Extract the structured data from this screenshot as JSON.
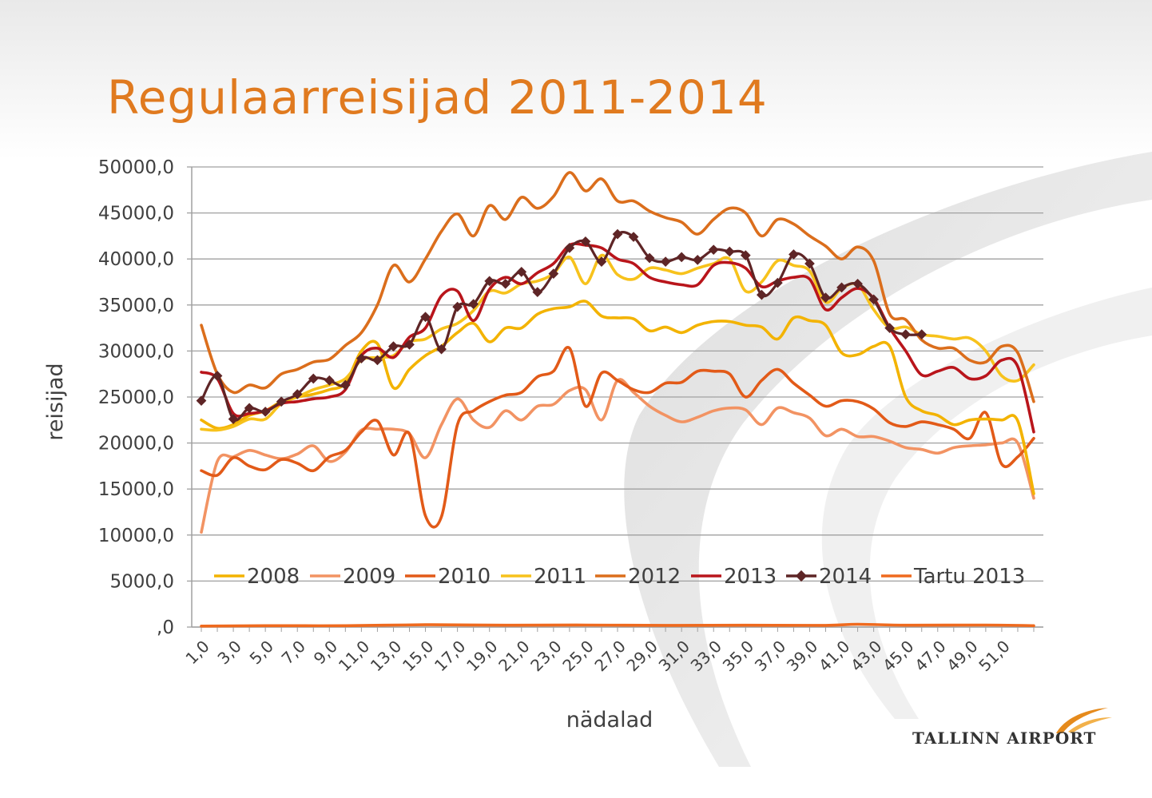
{
  "slide": {
    "title": "Regulaarreisijad 2011-2014",
    "logo_text": "TALLINN AIRPORT"
  },
  "colors": {
    "title": "#e07a1f",
    "grid": "#a0a0a0",
    "s2008": "#f3b300",
    "s2009": "#f29363",
    "s2010": "#e25a18",
    "s2011": "#f7c21c",
    "s2012": "#db6e1c",
    "s2013": "#b9151b",
    "s2014": "#5e2526",
    "sTartu": "#ef6a1e"
  },
  "chart_data": {
    "type": "line",
    "title": "Regulaarreisijad 2011-2014",
    "xlabel": "nädalad",
    "ylabel": "reisijad",
    "ylim": [
      0,
      50000
    ],
    "y_ticks": [
      "50000,0",
      "45000,0",
      "40000,0",
      "35000,0",
      "30000,0",
      "25000,0",
      "20000,0",
      "15000,0",
      "10000,0",
      "5000,0",
      ",0"
    ],
    "x_tick_labels": [
      "1,0",
      "3,0",
      "5,0",
      "7,0",
      "9,0",
      "11,0",
      "13,0",
      "15,0",
      "17,0",
      "19,0",
      "21,0",
      "23,0",
      "25,0",
      "27,0",
      "29,0",
      "31,0",
      "33,0",
      "35,0",
      "37,0",
      "39,0",
      "41,0",
      "43,0",
      "45,0",
      "47,0",
      "49,0",
      "51,0"
    ],
    "x_range": [
      1,
      53
    ],
    "grid": true,
    "legend_position": "bottom-inside",
    "series": [
      {
        "name": "2008",
        "color_key": "s2008",
        "x": [
          1,
          2,
          3,
          4,
          5,
          6,
          7,
          8,
          9,
          10,
          11,
          12,
          13,
          14,
          15,
          16,
          17,
          18,
          19,
          20,
          21,
          22,
          23,
          24,
          25,
          26,
          27,
          28,
          29,
          30,
          31,
          32,
          33,
          34,
          35,
          36,
          37,
          38,
          39,
          40,
          41,
          42,
          43,
          44,
          45,
          46,
          47,
          48,
          49,
          50,
          51,
          52,
          53
        ],
        "values": [
          22500,
          21600,
          22000,
          23000,
          23500,
          24500,
          25000,
          25300,
          25800,
          26500,
          30000,
          30800,
          26000,
          28000,
          29500,
          30500,
          32000,
          33000,
          31000,
          32500,
          32500,
          34000,
          34600,
          34800,
          35400,
          33800,
          33600,
          33500,
          32200,
          32600,
          32000,
          32800,
          33200,
          33200,
          32800,
          32600,
          31300,
          33600,
          33300,
          32800,
          29800,
          29600,
          30500,
          30500,
          25000,
          23500,
          23000,
          22000,
          22500,
          22600,
          22500,
          22400,
          14500
        ]
      },
      {
        "name": "2009",
        "color_key": "s2009",
        "x": [
          1,
          2,
          3,
          4,
          5,
          6,
          7,
          8,
          9,
          10,
          11,
          12,
          13,
          14,
          15,
          16,
          17,
          18,
          19,
          20,
          21,
          22,
          23,
          24,
          25,
          26,
          27,
          28,
          29,
          30,
          31,
          32,
          33,
          34,
          35,
          36,
          37,
          38,
          39,
          40,
          41,
          42,
          43,
          44,
          45,
          46,
          47,
          48,
          49,
          50,
          51,
          52,
          53
        ],
        "values": [
          10300,
          18000,
          18500,
          19200,
          18700,
          18300,
          18800,
          19700,
          18000,
          19000,
          21400,
          21500,
          21500,
          21000,
          18400,
          22000,
          24800,
          22500,
          21700,
          23500,
          22500,
          24000,
          24200,
          25700,
          25800,
          22500,
          26800,
          25500,
          24000,
          23000,
          22300,
          22800,
          23500,
          23800,
          23600,
          22000,
          23800,
          23300,
          22700,
          20800,
          21500,
          20700,
          20700,
          20200,
          19500,
          19300,
          18900,
          19500,
          19700,
          19800,
          20000,
          20000,
          14000
        ]
      },
      {
        "name": "2010",
        "color_key": "s2010",
        "x": [
          1,
          2,
          3,
          4,
          5,
          6,
          7,
          8,
          9,
          10,
          11,
          12,
          13,
          14,
          15,
          16,
          17,
          18,
          19,
          20,
          21,
          22,
          23,
          24,
          25,
          26,
          27,
          28,
          29,
          30,
          31,
          32,
          33,
          34,
          35,
          36,
          37,
          38,
          39,
          40,
          41,
          42,
          43,
          44,
          45,
          46,
          47,
          48,
          49,
          50,
          51,
          52,
          53
        ],
        "values": [
          17000,
          16500,
          18400,
          17500,
          17100,
          18200,
          17800,
          17000,
          18500,
          19200,
          21200,
          22400,
          18700,
          21000,
          12100,
          12000,
          22000,
          23500,
          24500,
          25200,
          25500,
          27200,
          27800,
          30300,
          24000,
          27600,
          26800,
          25800,
          25500,
          26500,
          26600,
          27800,
          27800,
          27500,
          25000,
          26800,
          28000,
          26500,
          25200,
          24000,
          24600,
          24500,
          23700,
          22200,
          21800,
          22300,
          22000,
          21500,
          20500,
          23300,
          17700,
          18500,
          20500
        ]
      },
      {
        "name": "2011",
        "color_key": "s2011",
        "x": [
          1,
          2,
          3,
          4,
          5,
          6,
          7,
          8,
          9,
          10,
          11,
          12,
          13,
          14,
          15,
          16,
          17,
          18,
          19,
          20,
          21,
          22,
          23,
          24,
          25,
          26,
          27,
          28,
          29,
          30,
          31,
          32,
          33,
          34,
          35,
          36,
          37,
          38,
          39,
          40,
          41,
          42,
          43,
          44,
          45,
          46,
          47,
          48,
          49,
          50,
          51,
          52,
          53
        ],
        "values": [
          21500,
          21400,
          21800,
          22600,
          22600,
          24300,
          25000,
          25800,
          26300,
          27000,
          29000,
          29300,
          29500,
          31000,
          31300,
          32400,
          33000,
          34400,
          36500,
          36300,
          37300,
          37600,
          38400,
          40200,
          37300,
          40400,
          38300,
          37800,
          39000,
          38800,
          38400,
          39000,
          39500,
          40000,
          36500,
          37500,
          39800,
          39300,
          38700,
          35300,
          36800,
          37200,
          34500,
          32500,
          32600,
          31800,
          31600,
          31300,
          31400,
          30000,
          27300,
          26800,
          28500
        ]
      },
      {
        "name": "2012",
        "color_key": "s2012",
        "x": [
          1,
          2,
          3,
          4,
          5,
          6,
          7,
          8,
          9,
          10,
          11,
          12,
          13,
          14,
          15,
          16,
          17,
          18,
          19,
          20,
          21,
          22,
          23,
          24,
          25,
          26,
          27,
          28,
          29,
          30,
          31,
          32,
          33,
          34,
          35,
          36,
          37,
          38,
          39,
          40,
          41,
          42,
          43,
          44,
          45,
          46,
          47,
          48,
          49,
          50,
          51,
          52,
          53
        ],
        "values": [
          32800,
          27500,
          25500,
          26300,
          26000,
          27500,
          28000,
          28800,
          29100,
          30600,
          32000,
          35000,
          39300,
          37500,
          40000,
          43000,
          44900,
          42500,
          45800,
          44300,
          46700,
          45500,
          46800,
          49400,
          47400,
          48700,
          46300,
          46300,
          45200,
          44500,
          44000,
          42700,
          44300,
          45500,
          45000,
          42500,
          44300,
          43800,
          42500,
          41400,
          40000,
          41300,
          39800,
          34000,
          33400,
          31200,
          30300,
          30300,
          29000,
          28800,
          30500,
          29800,
          24500
        ]
      },
      {
        "name": "2013",
        "color_key": "s2013",
        "x": [
          1,
          2,
          3,
          4,
          5,
          6,
          7,
          8,
          9,
          10,
          11,
          12,
          13,
          14,
          15,
          16,
          17,
          18,
          19,
          20,
          21,
          22,
          23,
          24,
          25,
          26,
          27,
          28,
          29,
          30,
          31,
          32,
          33,
          34,
          35,
          36,
          37,
          38,
          39,
          40,
          41,
          42,
          43,
          44,
          45,
          46,
          47,
          48,
          49,
          50,
          51,
          52,
          53
        ],
        "values": [
          27700,
          27000,
          23200,
          23200,
          23500,
          24300,
          24500,
          24800,
          25000,
          25800,
          29500,
          30300,
          29300,
          31500,
          32500,
          36000,
          36500,
          33300,
          36700,
          38000,
          37300,
          38500,
          39500,
          41500,
          41500,
          41200,
          40000,
          39500,
          38000,
          37500,
          37200,
          37200,
          39300,
          39600,
          39000,
          37000,
          37600,
          38000,
          37800,
          34500,
          35800,
          36800,
          35700,
          32500,
          30000,
          27400,
          27800,
          28200,
          27000,
          27300,
          29000,
          28300,
          21200
        ]
      },
      {
        "name": "2014",
        "color_key": "s2014",
        "x": [
          1,
          2,
          3,
          4,
          5,
          6,
          7,
          8,
          9,
          10,
          11,
          12,
          13,
          14,
          15,
          16,
          17,
          18,
          19,
          20,
          21,
          22,
          23,
          24,
          25,
          26,
          27,
          28,
          29,
          30,
          31,
          32,
          33,
          34,
          35,
          36,
          37,
          38,
          39,
          40,
          41,
          42,
          43,
          44,
          45,
          46
        ],
        "values": [
          24600,
          27300,
          22600,
          23800,
          23400,
          24500,
          25300,
          27000,
          26800,
          26300,
          29200,
          29000,
          30500,
          30700,
          33700,
          30200,
          34800,
          35100,
          37600,
          37300,
          38600,
          36400,
          38400,
          41200,
          41900,
          39700,
          42700,
          42400,
          40100,
          39700,
          40200,
          39900,
          41000,
          40800,
          40400,
          36100,
          37400,
          40500,
          39500,
          35800,
          36900,
          37300,
          35600,
          32500,
          31800,
          31800
        ]
      },
      {
        "name": "Tartu 2013",
        "color_key": "sTartu",
        "x": [
          1,
          5,
          10,
          15,
          20,
          25,
          30,
          35,
          40,
          42,
          45,
          50,
          53
        ],
        "values": [
          100,
          150,
          150,
          250,
          200,
          220,
          180,
          200,
          180,
          300,
          200,
          220,
          150
        ]
      }
    ]
  }
}
